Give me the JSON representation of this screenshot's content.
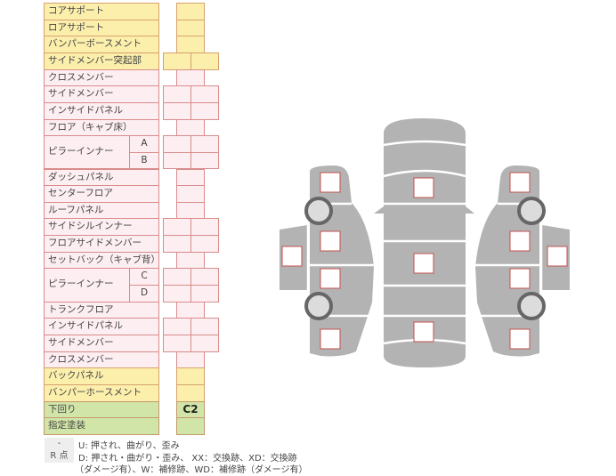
{
  "colors": {
    "front_rear": "#fcefac",
    "body": "#fdeef1",
    "under": "#d2e5a8",
    "border": "#d98c8c",
    "car": "#b3b3b3",
    "marker": "#c0504d"
  },
  "rows": [
    {
      "label": "コアサポート",
      "kind": "y",
      "cells": 1
    },
    {
      "label": "ロアサポート",
      "kind": "y",
      "cells": 1
    },
    {
      "label": "バンパーボースメント",
      "kind": "y",
      "cells": 1
    },
    {
      "label": "サイドメンバー突起部",
      "kind": "y",
      "cells": 2
    },
    {
      "label": "クロスメンバー",
      "kind": "p",
      "cells": 1
    },
    {
      "label": "サイドメンバー",
      "kind": "p",
      "cells": 2
    },
    {
      "label": "インサイドパネル",
      "kind": "p",
      "cells": 2
    },
    {
      "label": "フロア（キャブ床）",
      "kind": "p",
      "cells": 1
    },
    {
      "label": "ピラーインナー",
      "sub": "A",
      "kind": "p",
      "cells": 2
    },
    {
      "label": "",
      "sub": "B",
      "kind": "p",
      "cells": 2
    },
    {
      "label": "ダッシュパネル",
      "kind": "p",
      "cells": 1
    },
    {
      "label": "センターフロア",
      "kind": "p",
      "cells": 1
    },
    {
      "label": "ルーフパネル",
      "kind": "p",
      "cells": 1
    },
    {
      "label": "サイドシルインナー",
      "kind": "p",
      "cells": 2
    },
    {
      "label": "フロアサイドメンバー",
      "kind": "p",
      "cells": 2
    },
    {
      "label": "セットバック（キャブ背）",
      "kind": "p",
      "cells": 1
    },
    {
      "label": "ピラーインナー",
      "sub": "C",
      "kind": "p",
      "cells": 2
    },
    {
      "label": "",
      "sub": "D",
      "kind": "p",
      "cells": 2
    },
    {
      "label": "トランクフロア",
      "kind": "p",
      "cells": 1
    },
    {
      "label": "インサイドパネル",
      "kind": "p",
      "cells": 2
    },
    {
      "label": "サイドメンバー",
      "kind": "p",
      "cells": 2
    },
    {
      "label": "クロスメンバー",
      "kind": "p",
      "cells": 1
    },
    {
      "label": "バックパネル",
      "kind": "y",
      "cells": 1
    },
    {
      "label": "バンパーホースメント",
      "kind": "y",
      "cells": 1
    },
    {
      "label": "下回り",
      "kind": "g",
      "cells": 1,
      "value": "C2"
    },
    {
      "label": "指定塗装",
      "kind": "g",
      "cells": 1
    }
  ],
  "legend": [
    {
      "key": "-",
      "text": "U: 押され、曲がり、歪み"
    },
    {
      "key": "R 点",
      "text": "D: 押され・曲がり・歪み、 XX：交換跡、XD：交換跡"
    },
    {
      "key": "",
      "text": "（ダメージ有）、W：補修跡、WD：補修跡（ダメージ有）"
    }
  ]
}
